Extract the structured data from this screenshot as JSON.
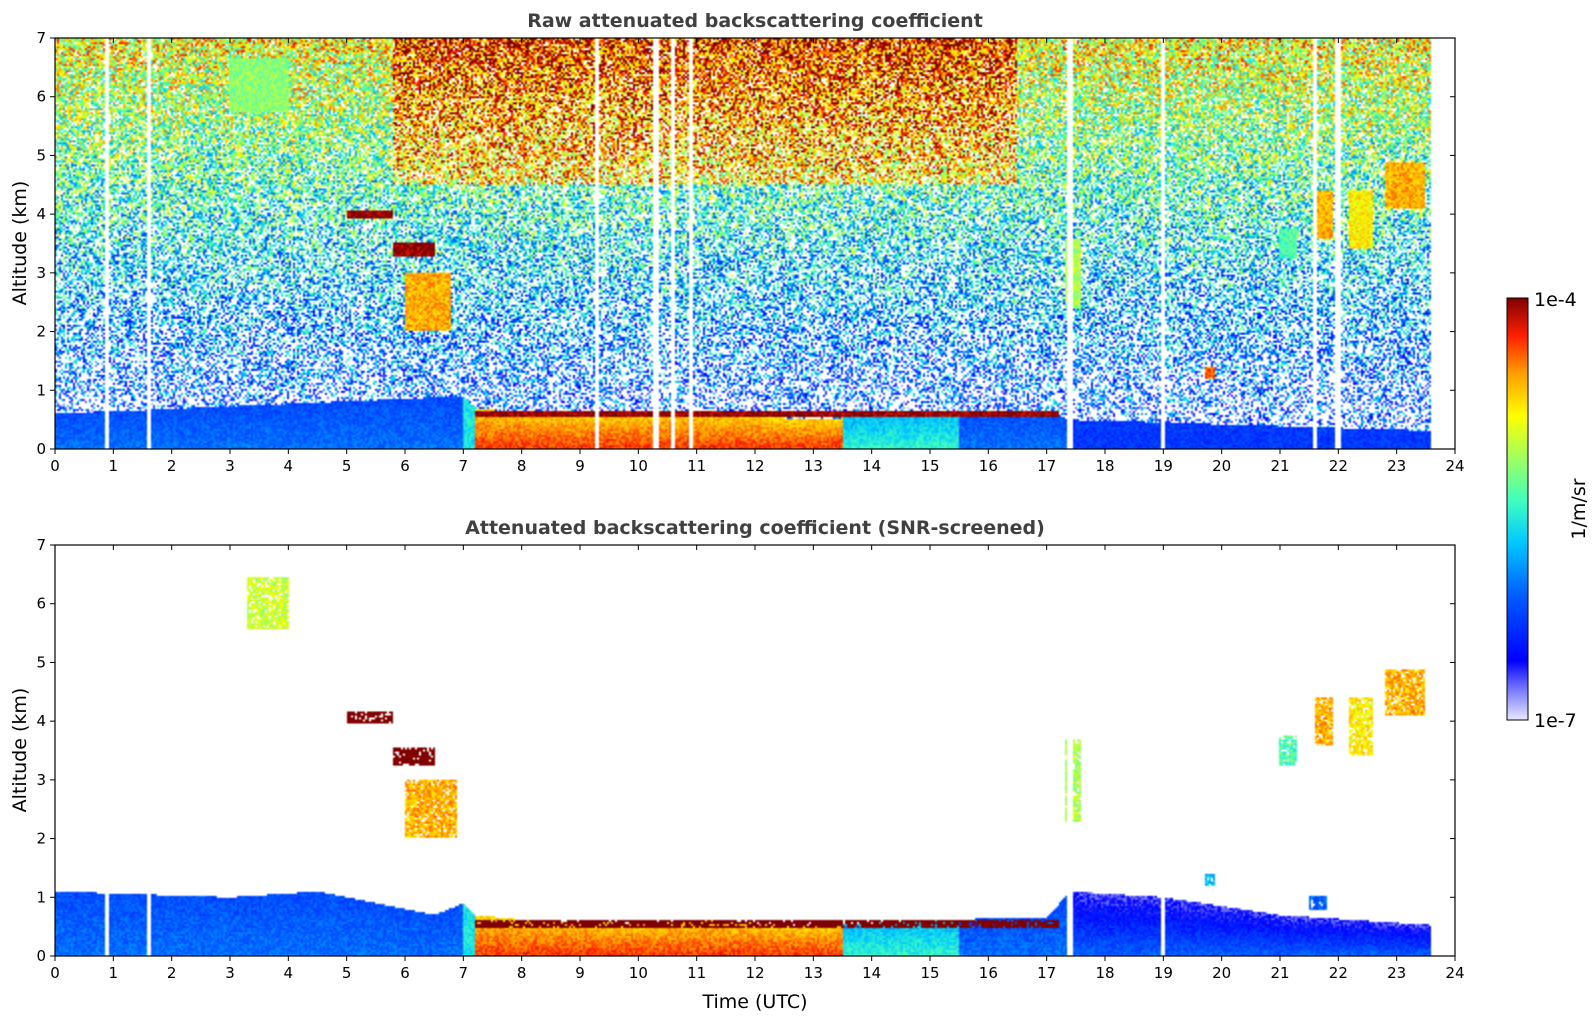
{
  "colorbar": {
    "label": "1/m/sr",
    "min_label": "1e-7",
    "max_label": "1e-4",
    "scale": "log",
    "colormap": "jet"
  },
  "chart_data": [
    {
      "type": "heatmap",
      "title": "Raw attenuated backscattering coefficient",
      "xlabel": "",
      "ylabel": "Altitude (km)",
      "xlim": [
        0,
        24
      ],
      "ylim": [
        0,
        7
      ],
      "xticks": [
        "0",
        "1",
        "2",
        "3",
        "4",
        "5",
        "6",
        "7",
        "8",
        "9",
        "10",
        "11",
        "12",
        "13",
        "14",
        "15",
        "16",
        "17",
        "18",
        "19",
        "20",
        "21",
        "22",
        "23",
        "24"
      ],
      "yticks": [
        "0",
        "1",
        "2",
        "3",
        "4",
        "5",
        "6",
        "7"
      ],
      "data_end_hour": 23.6,
      "boundary_layer_top_km": [
        [
          0,
          0.6
        ],
        [
          7,
          0.9
        ],
        [
          7.2,
          0.7
        ],
        [
          8,
          0.62
        ],
        [
          10,
          0.6
        ],
        [
          11,
          0.62
        ],
        [
          13,
          0.5
        ],
        [
          15,
          0.62
        ],
        [
          17,
          0.65
        ],
        [
          17.4,
          0.5
        ],
        [
          24,
          0.3
        ]
      ],
      "cloud_layers": [
        {
          "t_start": 5.0,
          "t_end": 5.8,
          "alt_km": 4.0,
          "thickness_km": 0.15,
          "log_value": -4.0
        },
        {
          "t_start": 5.8,
          "t_end": 6.5,
          "alt_km": 3.4,
          "thickness_km": 0.25,
          "log_value": -4.0
        },
        {
          "t_start": 6.0,
          "t_end": 6.8,
          "alt_km": 2.5,
          "thickness_km": 1.0,
          "log_value": -4.6
        },
        {
          "t_start": 3.0,
          "t_end": 4.0,
          "alt_km": 6.2,
          "thickness_km": 0.9,
          "log_value": -5.2
        },
        {
          "t_start": 7.2,
          "t_end": 17.2,
          "alt_km": 0.6,
          "thickness_km": 0.12,
          "log_value": -4.0
        },
        {
          "t_start": 17.3,
          "t_end": 17.6,
          "alt_km": 3.0,
          "thickness_km": 1.2,
          "log_value": -5.1
        },
        {
          "t_start": 21.0,
          "t_end": 21.3,
          "alt_km": 3.5,
          "thickness_km": 0.5,
          "log_value": -5.4
        },
        {
          "t_start": 21.6,
          "t_end": 21.9,
          "alt_km": 4.0,
          "thickness_km": 0.8,
          "log_value": -4.6
        },
        {
          "t_start": 22.2,
          "t_end": 22.6,
          "alt_km": 3.9,
          "thickness_km": 1.0,
          "log_value": -4.8
        },
        {
          "t_start": 22.8,
          "t_end": 23.5,
          "alt_km": 4.5,
          "thickness_km": 0.8,
          "log_value": -4.6
        },
        {
          "t_start": 19.7,
          "t_end": 19.9,
          "alt_km": 1.3,
          "thickness_km": 0.2,
          "log_value": -4.4
        }
      ],
      "data_gaps_hours": [
        0.9,
        1.6,
        9.3,
        10.3,
        10.6,
        10.9,
        17.4,
        19.0,
        21.6,
        22.0
      ],
      "noise": true
    },
    {
      "type": "heatmap",
      "title": "Attenuated backscattering coefficient (SNR-screened)",
      "xlabel": "Time (UTC)",
      "ylabel": "Altitude (km)",
      "xlim": [
        0,
        24
      ],
      "ylim": [
        0,
        7
      ],
      "xticks": [
        "0",
        "1",
        "2",
        "3",
        "4",
        "5",
        "6",
        "7",
        "8",
        "9",
        "10",
        "11",
        "12",
        "13",
        "14",
        "15",
        "16",
        "17",
        "18",
        "19",
        "20",
        "21",
        "22",
        "23",
        "24"
      ],
      "yticks": [
        "0",
        "1",
        "2",
        "3",
        "4",
        "5",
        "6",
        "7"
      ],
      "data_end_hour": 23.6,
      "boundary_layer_top_km": [
        [
          0,
          1.1
        ],
        [
          3,
          1.0
        ],
        [
          4.5,
          1.1
        ],
        [
          5.5,
          0.9
        ],
        [
          6.5,
          0.7
        ],
        [
          7,
          0.9
        ],
        [
          7.2,
          0.7
        ],
        [
          8,
          0.62
        ],
        [
          10,
          0.55
        ],
        [
          11,
          0.62
        ],
        [
          13,
          0.5
        ],
        [
          15,
          0.62
        ],
        [
          17,
          0.65
        ],
        [
          17.4,
          1.1
        ],
        [
          19,
          1.0
        ],
        [
          21,
          0.7
        ],
        [
          24,
          0.5
        ]
      ],
      "cloud_layers": [
        {
          "t_start": 5.0,
          "t_end": 5.8,
          "alt_km": 4.05,
          "thickness_km": 0.2,
          "log_value": -3.8
        },
        {
          "t_start": 5.8,
          "t_end": 6.5,
          "alt_km": 3.4,
          "thickness_km": 0.3,
          "log_value": -3.8
        },
        {
          "t_start": 6.0,
          "t_end": 6.9,
          "alt_km": 2.5,
          "thickness_km": 1.0,
          "log_value": -4.6
        },
        {
          "t_start": 3.3,
          "t_end": 4.0,
          "alt_km": 6.0,
          "thickness_km": 0.9,
          "log_value": -5.0
        },
        {
          "t_start": 7.2,
          "t_end": 17.2,
          "alt_km": 0.55,
          "thickness_km": 0.12,
          "log_value": -3.8
        },
        {
          "t_start": 17.3,
          "t_end": 17.6,
          "alt_km": 3.0,
          "thickness_km": 1.4,
          "log_value": -5.1
        },
        {
          "t_start": 21.0,
          "t_end": 21.3,
          "alt_km": 3.5,
          "thickness_km": 0.5,
          "log_value": -5.4
        },
        {
          "t_start": 21.6,
          "t_end": 21.9,
          "alt_km": 4.0,
          "thickness_km": 0.8,
          "log_value": -4.6
        },
        {
          "t_start": 22.2,
          "t_end": 22.6,
          "alt_km": 3.9,
          "thickness_km": 1.0,
          "log_value": -4.8
        },
        {
          "t_start": 22.8,
          "t_end": 23.5,
          "alt_km": 4.5,
          "thickness_km": 0.8,
          "log_value": -4.6
        },
        {
          "t_start": 19.7,
          "t_end": 19.9,
          "alt_km": 1.3,
          "thickness_km": 0.2,
          "log_value": -5.8
        },
        {
          "t_start": 21.5,
          "t_end": 21.8,
          "alt_km": 0.9,
          "thickness_km": 0.25,
          "log_value": -6.1
        }
      ],
      "data_gaps_hours": [
        0.9,
        1.6,
        17.4,
        19.0
      ],
      "noise": false
    }
  ]
}
